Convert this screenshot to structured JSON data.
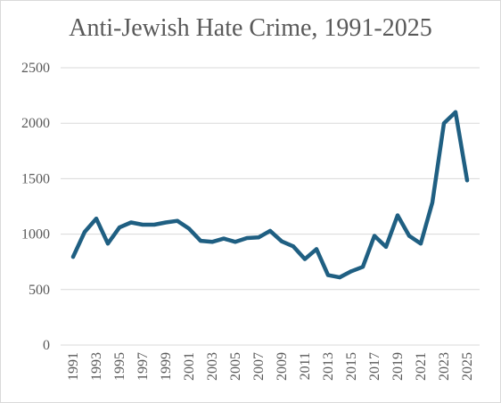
{
  "chart_data": {
    "type": "line",
    "title": "Anti-Jewish Hate Crime, 1991-2025",
    "xlabel": "",
    "ylabel": "",
    "ylim": [
      0,
      2500
    ],
    "yticks": [
      0,
      500,
      1000,
      1500,
      2000,
      2500
    ],
    "xtick_labels": [
      "1991",
      "1993",
      "1995",
      "1997",
      "1999",
      "2001",
      "2003",
      "2005",
      "2007",
      "2009",
      "2011",
      "2013",
      "2015",
      "2017",
      "2019",
      "2021",
      "2023",
      "2025"
    ],
    "grid": true,
    "legend": "none",
    "line_color": "#1f5f82",
    "series": [
      {
        "x": [
          1991,
          1992,
          1993,
          1994,
          1995,
          1996,
          1997,
          1998,
          1999,
          2000,
          2001,
          2002,
          2003,
          2004,
          2005,
          2006,
          2007,
          2008,
          2009,
          2010,
          2011,
          2012,
          2013,
          2014,
          2015,
          2016,
          2017,
          2018,
          2019,
          2020,
          2021,
          2022,
          2023,
          2024,
          2025
        ],
        "values": [
          795,
          1020,
          1140,
          915,
          1060,
          1105,
          1085,
          1085,
          1105,
          1120,
          1050,
          940,
          930,
          960,
          930,
          965,
          970,
          1030,
          935,
          890,
          775,
          865,
          630,
          610,
          665,
          705,
          985,
          885,
          1170,
          985,
          915,
          1285,
          2000,
          2100,
          1485
        ]
      }
    ]
  }
}
